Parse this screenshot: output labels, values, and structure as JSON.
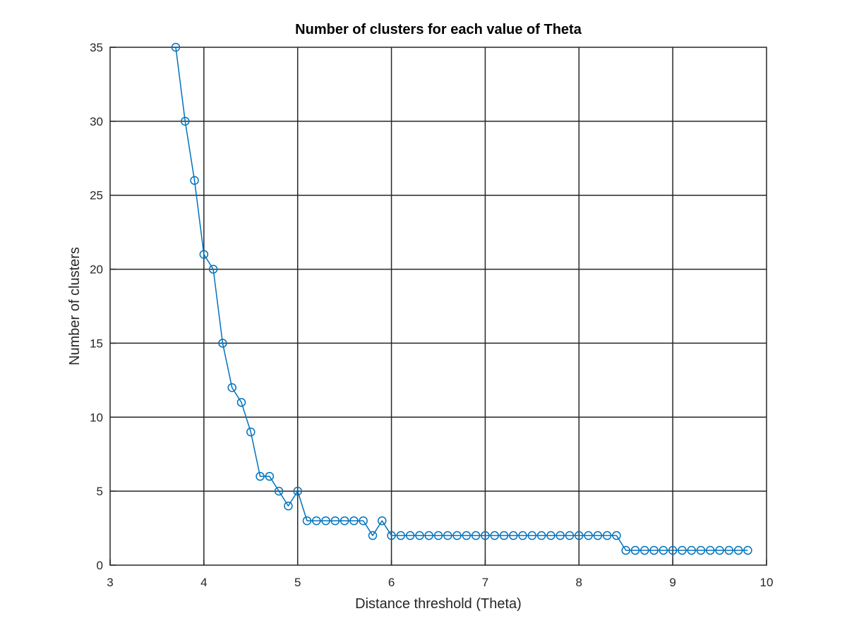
{
  "chart_data": {
    "type": "line",
    "title": "Number of clusters for each value of Theta",
    "xlabel": "Distance threshold (Theta)",
    "ylabel": "Number of clusters",
    "xlim": [
      3,
      10
    ],
    "ylim": [
      0,
      35
    ],
    "xticks": [
      "3",
      "4",
      "5",
      "6",
      "7",
      "8",
      "9",
      "10"
    ],
    "yticks": [
      "0",
      "5",
      "10",
      "15",
      "20",
      "25",
      "30",
      "35"
    ],
    "grid": true,
    "line_color": "#0072BD",
    "marker": "circle",
    "series": [
      {
        "x": [
          3.7,
          3.8,
          3.9,
          4.0,
          4.1,
          4.2,
          4.3,
          4.4,
          4.5,
          4.6,
          4.7,
          4.8,
          4.9,
          5.0,
          5.1,
          5.2,
          5.3,
          5.4,
          5.5,
          5.6,
          5.7,
          5.8,
          5.9,
          6.0,
          6.1,
          6.2,
          6.3,
          6.4,
          6.5,
          6.6,
          6.7,
          6.8,
          6.9,
          7.0,
          7.1,
          7.2,
          7.3,
          7.4,
          7.5,
          7.6,
          7.7,
          7.8,
          7.9,
          8.0,
          8.1,
          8.2,
          8.3,
          8.4,
          8.5,
          8.6,
          8.7,
          8.8,
          8.9,
          9.0,
          9.1,
          9.2,
          9.3,
          9.4,
          9.5,
          9.6,
          9.7,
          9.8
        ],
        "y": [
          35,
          30,
          26,
          21,
          20,
          15,
          12,
          11,
          9,
          6,
          6,
          5,
          4,
          5,
          3,
          3,
          3,
          3,
          3,
          3,
          3,
          2,
          3,
          2,
          2,
          2,
          2,
          2,
          2,
          2,
          2,
          2,
          2,
          2,
          2,
          2,
          2,
          2,
          2,
          2,
          2,
          2,
          2,
          2,
          2,
          2,
          2,
          2,
          1,
          1,
          1,
          1,
          1,
          1,
          1,
          1,
          1,
          1,
          1,
          1,
          1,
          1
        ]
      }
    ]
  }
}
